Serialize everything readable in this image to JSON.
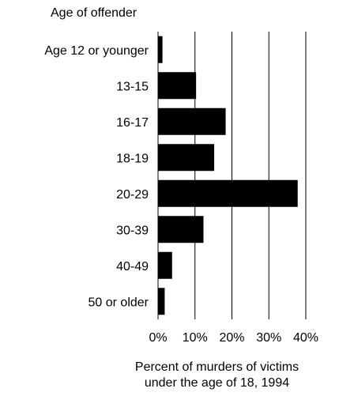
{
  "chart_data": {
    "type": "bar",
    "orientation": "horizontal",
    "ylabel": "Age of offender",
    "xlabel_lines": [
      "Percent of murders of victims",
      "under the age of 18, 1994"
    ],
    "categories": [
      "Age 12 or younger",
      "13-15",
      "16-17",
      "18-19",
      "20-29",
      "30-39",
      "40-49",
      "50 or older"
    ],
    "values": [
      1.2,
      10.3,
      18.3,
      15.2,
      37.8,
      12.3,
      3.8,
      1.8
    ],
    "xlim": [
      0,
      40
    ],
    "xticks": [
      "0%",
      "10%",
      "20%",
      "30%",
      "40%"
    ],
    "grid": true,
    "bar_color": "#000000"
  }
}
